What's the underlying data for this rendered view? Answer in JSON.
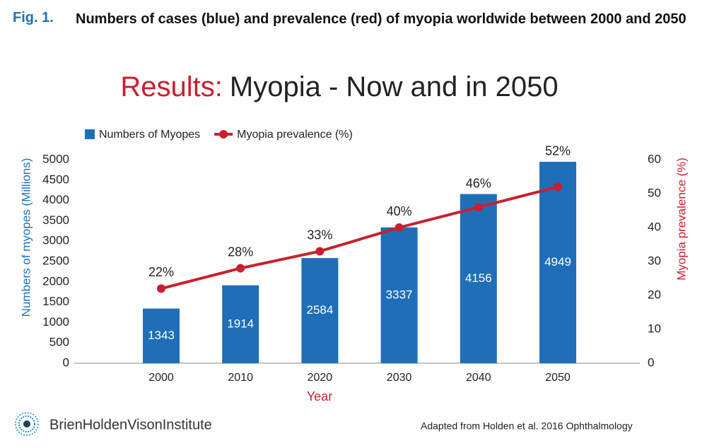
{
  "figure_label": "Fig. 1.",
  "caption": "Numbers of cases (blue) and prevalence (red) of myopia worldwide between 2000 and 2050",
  "chart_data": {
    "type": "bar",
    "title_lead": "Results:",
    "title": "Myopia - Now and in 2050",
    "x_label": "Year",
    "y_label": "Numbers of  myopes (Millions)",
    "y2_label": "Myopia prevalence (%)",
    "categories": [
      "2000",
      "2010",
      "2020",
      "2030",
      "2040",
      "2050"
    ],
    "series": [
      {
        "name": "Numbers of Myopes",
        "color": "#1f6fb8",
        "type": "bar",
        "axis": "y",
        "values": [
          1343,
          1914,
          2584,
          3337,
          4156,
          4949
        ]
      },
      {
        "name": "Myopia prevalence (%)",
        "color": "#c8202f",
        "type": "line",
        "axis": "y2",
        "values": [
          22,
          28,
          33,
          40,
          46,
          52
        ],
        "value_labels": [
          "22%",
          "28%",
          "33%",
          "40%",
          "46%",
          "52%"
        ]
      }
    ],
    "ylim": [
      0,
      5000
    ],
    "yticks": [
      0,
      500,
      1000,
      1500,
      2000,
      2500,
      3000,
      3500,
      4000,
      4500,
      5000
    ],
    "y2lim": [
      0,
      60
    ],
    "y2ticks": [
      0,
      10,
      20,
      30,
      40,
      50,
      60
    ],
    "legend": "top",
    "grid": false
  },
  "logo_text": "BrienHoldenVisonInstitute",
  "source": "Adapted from Holden et al. 2016 Ophthalmology"
}
